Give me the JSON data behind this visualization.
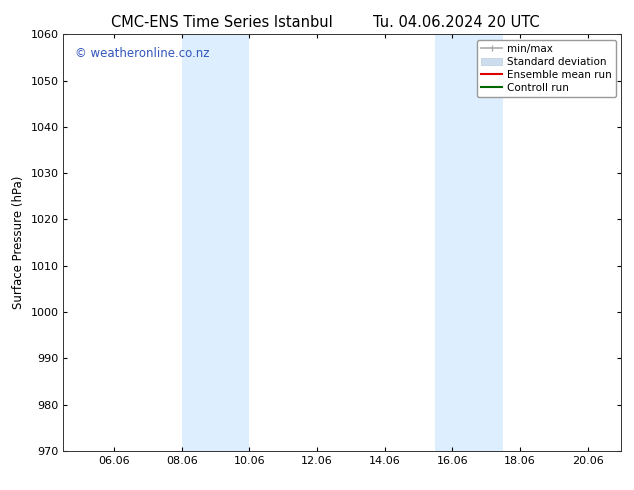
{
  "title_left": "CMC-ENS Time Series Istanbul",
  "title_right": "Tu. 04.06.2024 20 UTC",
  "ylabel": "Surface Pressure (hPa)",
  "xlim": [
    4.5,
    21.0
  ],
  "ylim": [
    970,
    1060
  ],
  "yticks": [
    970,
    980,
    990,
    1000,
    1010,
    1020,
    1030,
    1040,
    1050,
    1060
  ],
  "xtick_labels": [
    "06.06",
    "08.06",
    "10.06",
    "12.06",
    "14.06",
    "16.06",
    "18.06",
    "20.06"
  ],
  "xtick_positions": [
    6,
    8,
    10,
    12,
    14,
    16,
    18,
    20
  ],
  "shaded_bands": [
    {
      "xmin": 8.0,
      "xmax": 10.0
    },
    {
      "xmin": 15.5,
      "xmax": 17.5
    }
  ],
  "shade_color": "#ddeeff",
  "watermark_text": "© weatheronline.co.nz",
  "watermark_color": "#3355bb",
  "legend_items": [
    {
      "label": "min/max",
      "color": "#aaaaaa",
      "lw": 1.2
    },
    {
      "label": "Standard deviation",
      "color": "#ccddee",
      "lw": 8
    },
    {
      "label": "Ensemble mean run",
      "color": "#dd0000",
      "lw": 1.5
    },
    {
      "label": "Controll run",
      "color": "#006600",
      "lw": 1.5
    }
  ],
  "bg_color": "#ffffff",
  "spine_color": "#333333",
  "title_fontsize": 10.5,
  "label_fontsize": 8.5,
  "tick_fontsize": 8,
  "legend_fontsize": 7.5,
  "watermark_fontsize": 8.5
}
